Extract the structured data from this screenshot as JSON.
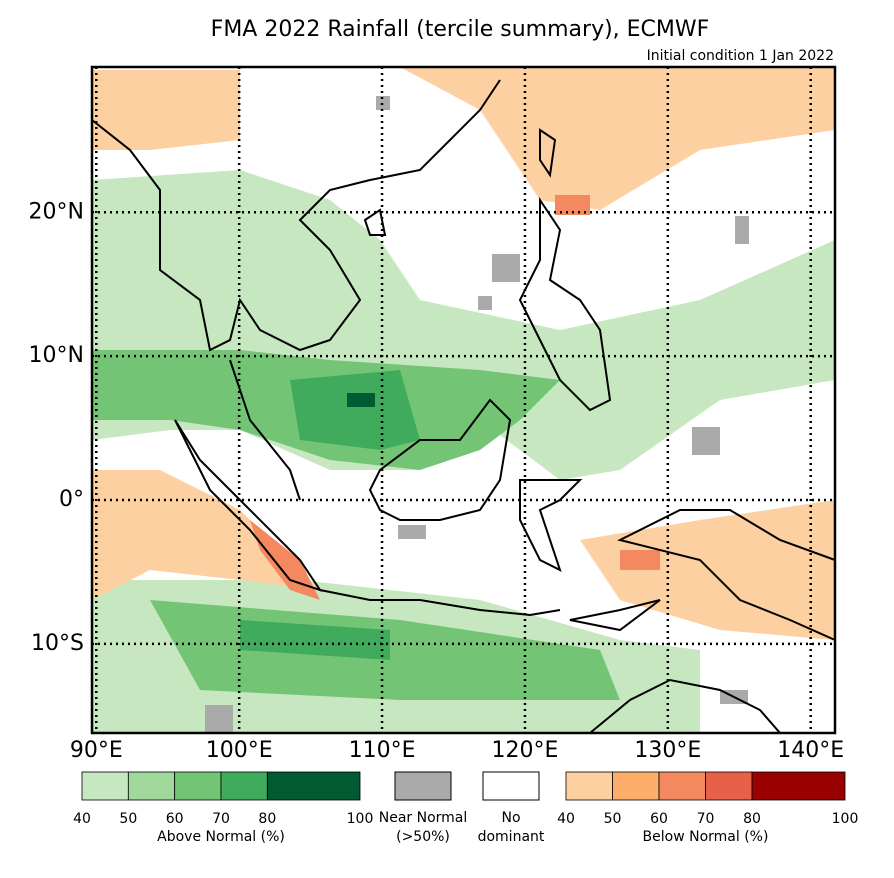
{
  "map": {
    "title": "FMA 2022 Rainfall (tercile summary), ECMWF",
    "subtitle": "Initial condition 1 Jan 2022",
    "xlim": [
      89.7,
      141.7
    ],
    "ylim": [
      -16.2,
      30.1
    ],
    "xticks": [
      {
        "value": 90,
        "label": "90°E"
      },
      {
        "value": 100,
        "label": "100°E"
      },
      {
        "value": 110,
        "label": "110°E"
      },
      {
        "value": 120,
        "label": "120°E"
      },
      {
        "value": 130,
        "label": "130°E"
      },
      {
        "value": 140,
        "label": "140°E"
      }
    ],
    "yticks": [
      {
        "value": 20,
        "label": "20°N"
      },
      {
        "value": 10,
        "label": "10°N"
      },
      {
        "value": 0,
        "label": "0°"
      },
      {
        "value": -10,
        "label": "10°S"
      }
    ],
    "grid": true
  },
  "legend": {
    "above": {
      "label": "Above Normal (%)",
      "ticks": [
        40,
        50,
        60,
        70,
        80,
        100
      ],
      "colors": [
        "#c7e7c0",
        "#a0d79a",
        "#74c476",
        "#41ab5d",
        "#005a32"
      ]
    },
    "near": {
      "lines": [
        "Near Normal",
        "(>50%)"
      ],
      "color": "#aaaaaa"
    },
    "none": {
      "lines": [
        "No",
        "dominant"
      ],
      "color": "#ffffff"
    },
    "below": {
      "label": "Below Normal (%)",
      "ticks": [
        40,
        50,
        60,
        70,
        80,
        100
      ],
      "colors": [
        "#fdd0a2",
        "#fdae6b",
        "#f4895f",
        "#e6604a",
        "#990000"
      ]
    }
  }
}
